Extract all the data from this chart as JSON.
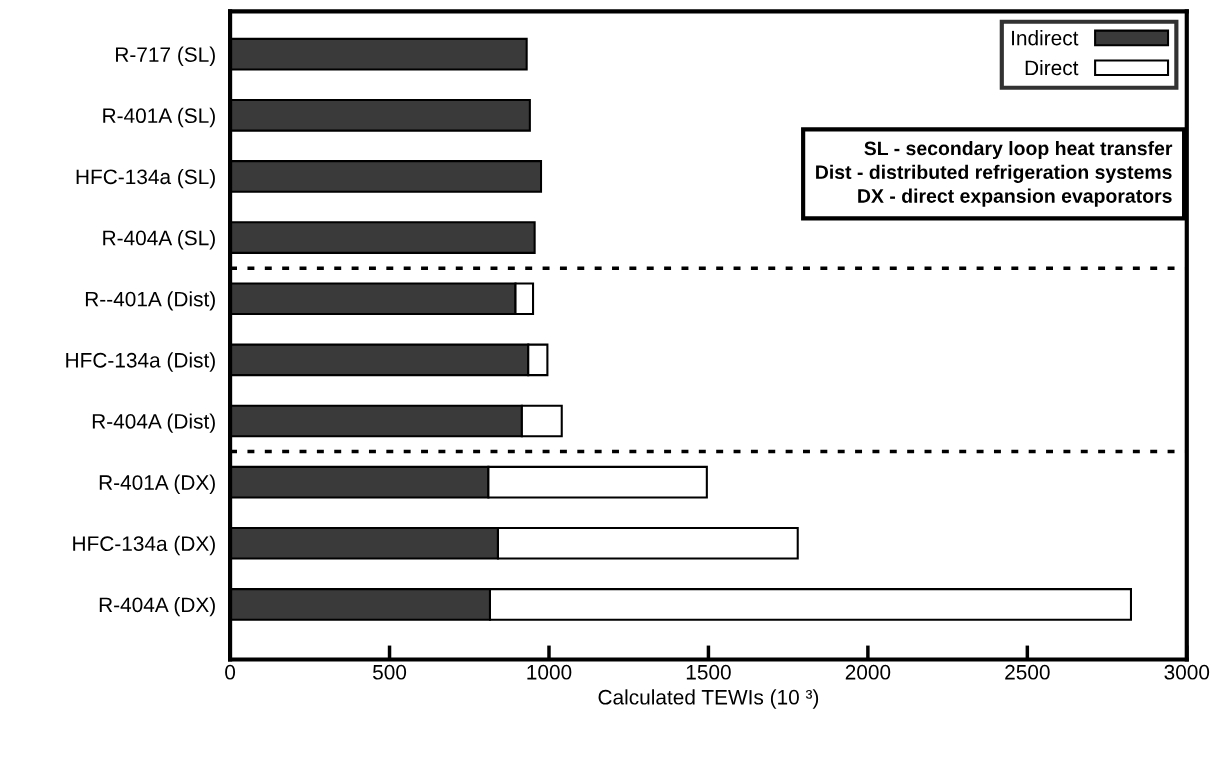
{
  "chart_data": {
    "type": "bar",
    "orientation": "horizontal",
    "stacked": true,
    "categories": [
      "R-717 (SL)",
      "R-401A (SL)",
      "HFC-134a (SL)",
      "R-404A (SL)",
      "R--401A (Dist)",
      "HFC-134a (Dist)",
      "R-404A (Dist)",
      "R-401A (DX)",
      "HFC-134a (DX)",
      "R-404A (DX)"
    ],
    "series": [
      {
        "name": "Indirect",
        "color": "#3a3a3a",
        "values": [
          930,
          940,
          975,
          955,
          895,
          935,
          915,
          810,
          840,
          815
        ]
      },
      {
        "name": "Direct",
        "color": "#ffffff",
        "values": [
          null,
          null,
          null,
          null,
          55,
          60,
          125,
          685,
          940,
          2010
        ]
      }
    ],
    "xlabel": "Calculated TEWIs (10 ³)",
    "xlim": [
      0,
      3000
    ],
    "xticks": [
      0,
      500,
      1000,
      1500,
      2000,
      2500,
      3000
    ],
    "legend": "top right",
    "grid": false,
    "annotations": [
      "SL - secondary loop heat transfer",
      "Dist - distributed refrigeration systems",
      "DX - direct expansion evaporators"
    ]
  }
}
